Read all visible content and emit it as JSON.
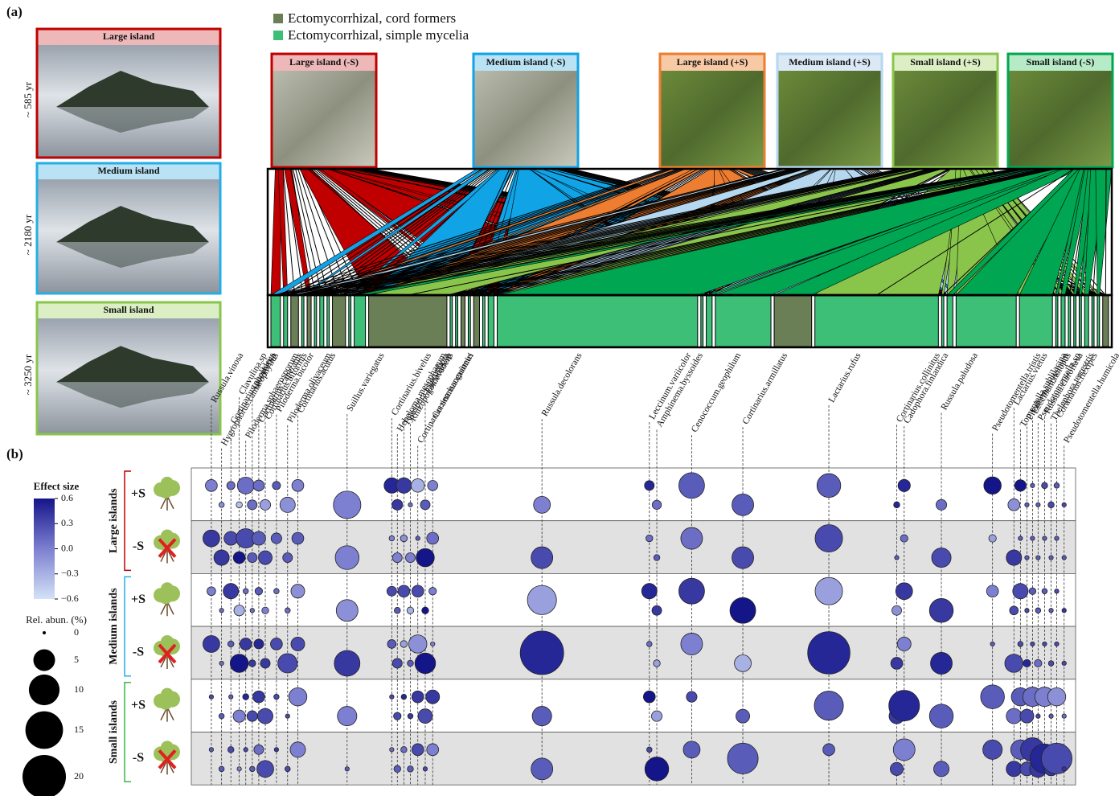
{
  "panel_a": {
    "label": "(a)",
    "legend": [
      {
        "name": "Ectomycorrhizal, cord formers",
        "color": "#6b7f56"
      },
      {
        "name": "Ectomycorrhizal, simple mycelia",
        "color": "#3dbf78"
      }
    ],
    "islands": [
      {
        "title": "Large island",
        "age": "~ 585 yr",
        "color": "#c00000",
        "fill": "#eeb7b8"
      },
      {
        "title": "Medium island",
        "age": "~ 2180 yr",
        "color": "#25aee5",
        "fill": "#b9e3f5"
      },
      {
        "title": "Small island",
        "age": "~ 3250 yr",
        "color": "#8ac54b",
        "fill": "#dcefc4"
      }
    ],
    "plots": [
      {
        "title": "Large island (-S)",
        "color": "#c00000",
        "fill": "#eeb7b8"
      },
      {
        "title": "Medium island (-S)",
        "color": "#10a3e6",
        "fill": "#b9e3f5"
      },
      {
        "title": "Large island (+S)",
        "color": "#ed7d31",
        "fill": "#f7c9a5"
      },
      {
        "title": "Medium island (+S)",
        "color": "#b5d7f0",
        "fill": "#dbe9f7"
      },
      {
        "title": "Small island (+S)",
        "color": "#8ac54b",
        "fill": "#dcefc4"
      },
      {
        "title": "Small island (-S)",
        "color": "#00a651",
        "fill": "#b7ebc8"
      }
    ],
    "taxa": [
      {
        "name": "Russula.vinosa",
        "guild": 1,
        "abundance": 14
      },
      {
        "name": "Hygrophorus.camarophyllus",
        "guild": 1,
        "abundance": 8
      },
      {
        "name": "Cortinarius.pholideus",
        "guild": 0,
        "abundance": 12
      },
      {
        "name": "Clavulina.sp",
        "guild": 1,
        "abundance": 6
      },
      {
        "name": "Piloderma.sphaerosporum",
        "guild": 0,
        "abundance": 8
      },
      {
        "name": "Inocybe.sp",
        "guild": 1,
        "abundance": 6
      },
      {
        "name": "Cortinarius.caperatus",
        "guild": 1,
        "abundance": 8
      },
      {
        "name": "Cortinarius.biformis",
        "guild": 1,
        "abundance": 6
      },
      {
        "name": "Piloderma.bicolor",
        "guild": 0,
        "abundance": 18
      },
      {
        "name": "Piloderma.olivaceum",
        "guild": 1,
        "abundance": 6
      },
      {
        "name": "Cortinarius.acutus",
        "guild": 1,
        "abundance": 16
      },
      {
        "name": "Suillus.variegatus",
        "guild": 0,
        "abundance": 90
      },
      {
        "name": "Cortinarius.bivelus",
        "guild": 1,
        "abundance": 6
      },
      {
        "name": "Hebeloma.mesophaeum",
        "guild": 1,
        "abundance": 6
      },
      {
        "name": "Tylospora.asterophora",
        "guild": 0,
        "abundance": 8
      },
      {
        "name": "Rhizopogon.evadens",
        "guild": 1,
        "abundance": 6
      },
      {
        "name": "Cortinarius.semisanguineus",
        "guild": 0,
        "abundance": 10
      },
      {
        "name": "Lactarius.sp",
        "guild": 1,
        "abundance": 6
      },
      {
        "name": "Cortinarius.casimiri",
        "guild": 1,
        "abundance": 10
      },
      {
        "name": "Russula.decolorans",
        "guild": 1,
        "abundance": 225
      },
      {
        "name": "Leccinum.variicolor",
        "guild": 1,
        "abundance": 6
      },
      {
        "name": "Amphinema.byssoides",
        "guild": 1,
        "abundance": 10
      },
      {
        "name": "Cenococcum.geophilum",
        "guild": 1,
        "abundance": 65
      },
      {
        "name": "Cortinarius.armillatus",
        "guild": 0,
        "abundance": 45
      },
      {
        "name": "Lactarius.rufus",
        "guild": 1,
        "abundance": 140
      },
      {
        "name": "Cortinarius.collinitus",
        "guild": 1,
        "abundance": 6
      },
      {
        "name": "Cadophora.finlandica",
        "guild": 1,
        "abundance": 10
      },
      {
        "name": "Russula.paludosa",
        "guild": 1,
        "abundance": 70
      },
      {
        "name": "Pseudotomentella.tristis",
        "guild": 1,
        "abundance": 40
      },
      {
        "name": "Lactarius.vietus",
        "guild": 1,
        "abundance": 6
      },
      {
        "name": "Tomentella.sublilacina",
        "guild": 1,
        "abundance": 8
      },
      {
        "name": "Piloderma.byssinum",
        "guild": 1,
        "abundance": 6
      },
      {
        "name": "Leccinum.holopus",
        "guild": 1,
        "abundance": 6
      },
      {
        "name": "Pseudotomentella.sp",
        "guild": 1,
        "abundance": 6
      },
      {
        "name": "Russula.claroflava",
        "guild": 1,
        "abundance": 8
      },
      {
        "name": "Thelephora.terrestris",
        "guild": 1,
        "abundance": 6
      },
      {
        "name": "Cortinarius.flexipes",
        "guild": 1,
        "abundance": 6
      },
      {
        "name": "Pseudotomentella.humicola",
        "guild": 0,
        "abundance": 10
      }
    ]
  },
  "panel_b": {
    "label": "(b)",
    "effect_legend": {
      "title": "Effect size",
      "range": [
        -0.6,
        0.6
      ],
      "ticks": [
        0.6,
        0.3,
        {
          "value": 0,
          "label": "0.0"
        },
        {
          "value": -0.3,
          "label": "−0.3"
        },
        {
          "value": -0.6,
          "label": "−0.6"
        }
      ]
    },
    "size_legend": {
      "title": "Rel. abun. (%)",
      "ticks": [
        0,
        5,
        10,
        15,
        20
      ]
    },
    "groups": [
      {
        "name": "Large islands",
        "color": "#c00000",
        "rows": [
          {
            "label": "+S",
            "sizes": [
              1.5,
              0.3,
              0.7,
              0.4,
              3,
              1,
              1.3,
              1.2,
              0.7,
              2.5,
              1.5,
              8,
              2.5,
              1.2,
              2.5,
              0.2,
              1.9,
              1,
              1.1,
              3,
              1,
              0.9,
              7,
              5,
              6,
              0.4,
              1.6,
              1.2,
              3.2,
              1.5,
              1.4,
              0.2,
              0.2,
              0.2,
              0.4,
              0.4,
              0.3,
              0.2
            ],
            "effects": [
              0,
              -0.1,
              0.1,
              -0.4,
              0.1,
              0.1,
              0.1,
              -0.2,
              0.2,
              -0.1,
              0,
              0,
              0.5,
              0.4,
              0.4,
              0.1,
              -0.3,
              0.2,
              0,
              0,
              0.5,
              0.1,
              0.2,
              0.2,
              0.2,
              0.5,
              0.5,
              0.1,
              0.6,
              -0.1,
              0.6,
              0.2,
              0.2,
              0.2,
              0.3,
              0.3,
              0.2,
              0.3
            ]
          },
          {
            "label": "-S",
            "sizes": [
              3,
              2.5,
              2,
              1.5,
              4,
              1,
              2,
              2,
              1.2,
              1,
              1.5,
              6,
              0.3,
              1,
              0.5,
              1,
              0.2,
              3.5,
              1.5,
              5,
              0.5,
              0.4,
              5,
              5,
              8,
              0.2,
              0.6,
              4,
              0.6,
              2.5,
              0.2,
              0.2,
              0.2,
              0.2,
              0.2,
              0.2,
              0.2,
              0.2
            ],
            "effects": [
              0.4,
              0.4,
              0.3,
              0.6,
              0.3,
              0.2,
              0.2,
              0.3,
              0.2,
              0.2,
              0.2,
              0,
              0,
              0,
              -0.1,
              0,
              0.2,
              0.6,
              0.1,
              0.3,
              0.1,
              0.2,
              0.1,
              0.3,
              0.3,
              0.2,
              0.1,
              0.3,
              -0.2,
              0.4,
              0.2,
              0.2,
              0.2,
              0.2,
              0.2,
              0.2,
              0.2,
              0.2
            ]
          }
        ]
      },
      {
        "name": "Medium islands",
        "color": "#25aee5",
        "rows": [
          {
            "label": "+S",
            "sizes": [
              0.8,
              0.2,
              2.5,
              1.2,
              0.3,
              0.2,
              0.6,
              0.5,
              0.3,
              0.3,
              2,
              5,
              1,
              0.4,
              1.5,
              0.5,
              1.5,
              0.5,
              0.6,
              9,
              2.5,
              1,
              7,
              7,
              8,
              1,
              3,
              6,
              1.5,
              0.8,
              2.5,
              0.2,
              0.5,
              0.3,
              0.3,
              0.2,
              0.2,
              0.2
            ],
            "effects": [
              0,
              0.1,
              0.4,
              -0.3,
              0.1,
              0.1,
              0.2,
              0,
              0.1,
              0.1,
              -0.1,
              -0.1,
              0.3,
              0.2,
              0.3,
              -0.3,
              0.3,
              0.6,
              0,
              -0.2,
              0.5,
              0.4,
              0.4,
              0.6,
              -0.2,
              -0.1,
              0.4,
              0.4,
              0,
              0.3,
              0.3,
              0.3,
              0.2,
              0.2,
              0.2,
              0.2,
              0.3,
              0.4
            ]
          },
          {
            "label": "-S",
            "sizes": [
              3,
              0.2,
              0.4,
              3.5,
              1.5,
              0.5,
              1,
              1,
              1.5,
              4,
              2,
              7,
              0.8,
              1,
              0.5,
              0.4,
              3.5,
              4.5,
              0.2,
              20,
              0.3,
              0.5,
              5,
              3,
              19,
              1.5,
              2,
              5,
              0.2,
              3.5,
              0.3,
              0.6,
              0.2,
              0.6,
              0.2,
              0.3,
              0.2,
              0.2
            ],
            "effects": [
              0.4,
              0.1,
              0.2,
              0.6,
              0.4,
              0.4,
              0.5,
              0.4,
              0.3,
              0.3,
              0.3,
              0.4,
              0.2,
              0.3,
              -0.2,
              0.2,
              -0.1,
              0.6,
              0,
              0.5,
              0.1,
              -0.2,
              0,
              -0.3,
              0.5,
              0.4,
              0,
              0.5,
              0.2,
              0.3,
              0.3,
              0.5,
              0.3,
              0.1,
              0.3,
              0.3,
              0.3,
              0.3
            ]
          }
        ]
      },
      {
        "name": "Small islands",
        "color": "#3bb54a",
        "rows": [
          {
            "label": "+S",
            "sizes": [
              0.2,
              0.3,
              0.2,
              1.6,
              0.4,
              1.2,
              1.5,
              2.5,
              0.3,
              0.2,
              3.5,
              4,
              0.2,
              0.6,
              0.3,
              0.3,
              1.5,
              2.2,
              2,
              4,
              1.5,
              1.2,
              1.2,
              2,
              9,
              2.5,
              10,
              6,
              6,
              2.5,
              3.5,
              2,
              4,
              0.2,
              4,
              0.2,
              3.5,
              0.2
            ],
            "effects": [
              0.3,
              0.2,
              0.2,
              0,
              0.5,
              0.3,
              0.4,
              0.3,
              0.3,
              0.3,
              0,
              0,
              0.3,
              0.3,
              0.5,
              0.4,
              0.4,
              0.3,
              0.4,
              0.2,
              0.6,
              -0.2,
              0.3,
              0.2,
              0.2,
              0.4,
              0.5,
              0.2,
              0.2,
              0.1,
              0.2,
              0.3,
              0.1,
              0.3,
              0,
              0.2,
              -0.1,
              0.1
            ]
          },
          {
            "label": "-S",
            "sizes": [
              0.2,
              0.3,
              0.4,
              0.2,
              0.2,
              0.3,
              1,
              3,
              0.2,
              0.3,
              2.5,
              0.2,
              0.2,
              0.5,
              0.4,
              0.4,
              1.5,
              0.2,
              1.5,
              5,
              0.3,
              6,
              3,
              10,
              1.5,
              1.8,
              5,
              2.5,
              4,
              2.5,
              4,
              2,
              6,
              3,
              9,
              2,
              10,
              0.2
            ],
            "effects": [
              0.2,
              0.2,
              0.3,
              0,
              0.3,
              0.2,
              0.1,
              0.3,
              0.4,
              0.3,
              0,
              0.2,
              0.1,
              0.2,
              0.1,
              0.2,
              0.3,
              0.3,
              0,
              0.2,
              0.3,
              0.6,
              0.2,
              0.2,
              0.2,
              0.3,
              0,
              0.2,
              0.3,
              0.4,
              0.2,
              0.3,
              0.4,
              0.4,
              0.5,
              0.4,
              0.3,
              0.4
            ]
          }
        ]
      }
    ]
  }
}
